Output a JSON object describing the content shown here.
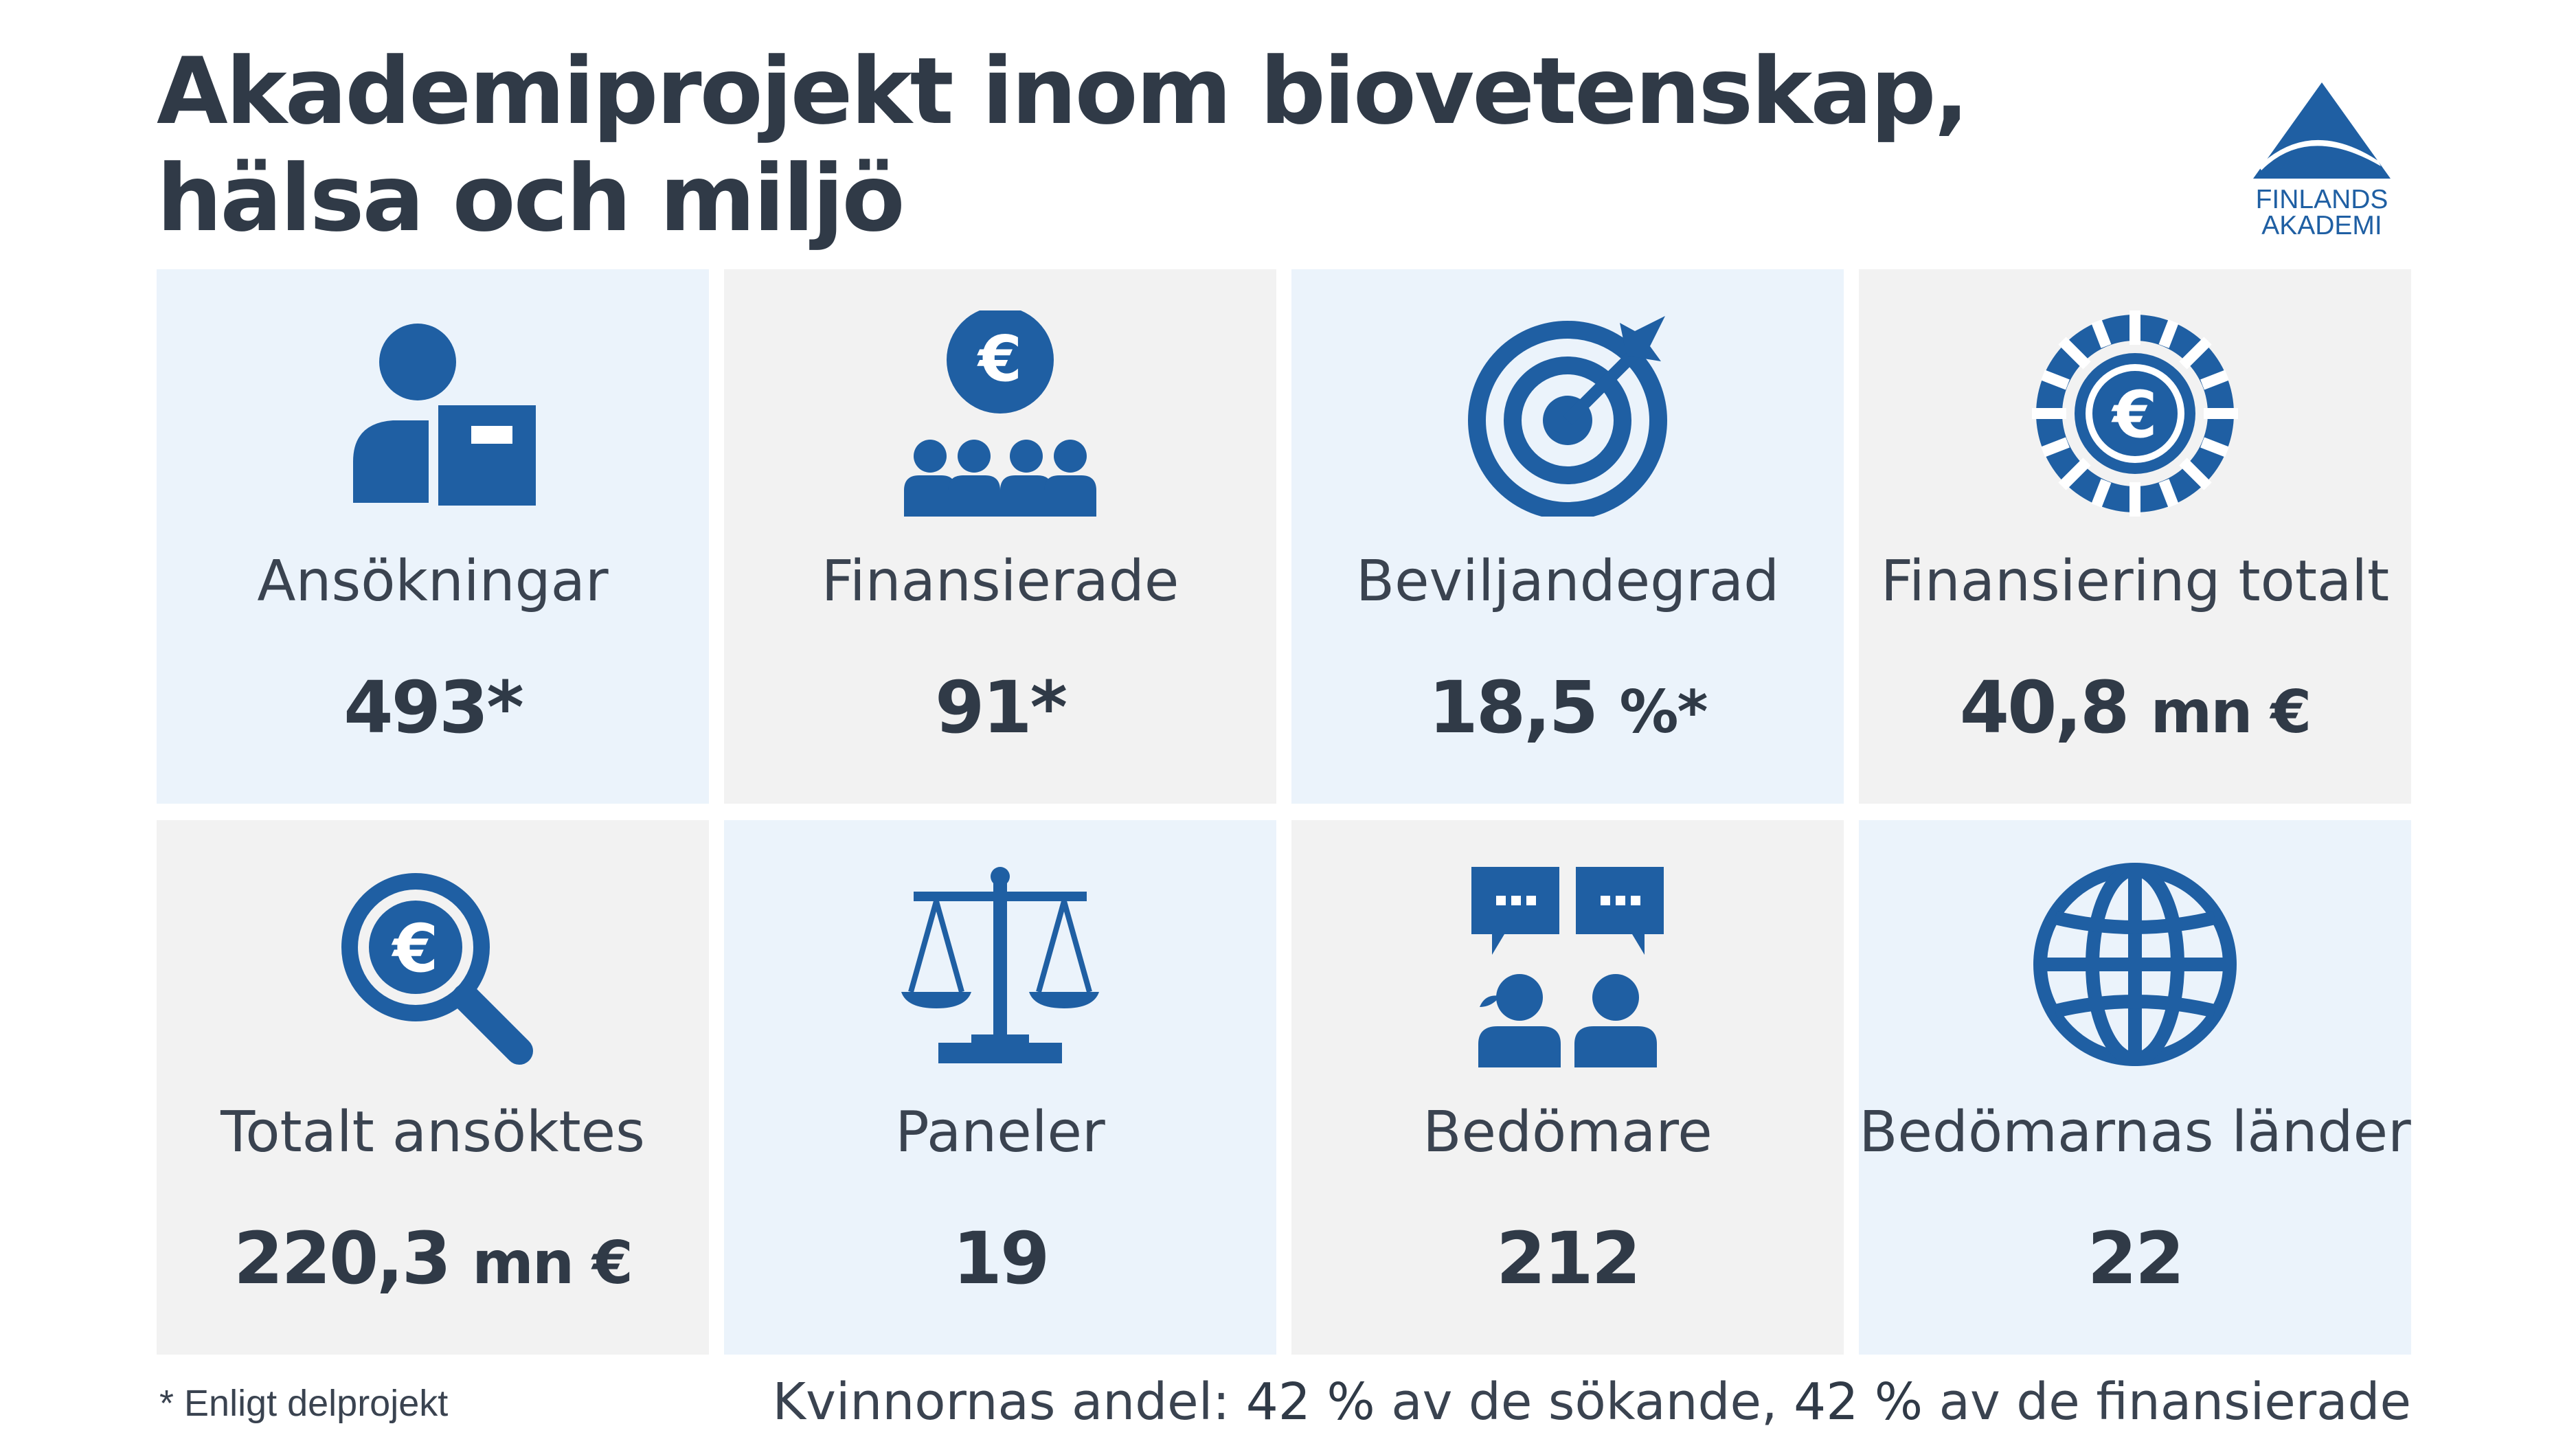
{
  "header": {
    "title_line1": "Akademiprojekt inom biovetenskap,",
    "title_line2": "hälsa och miljö"
  },
  "logo": {
    "line1": "FINLANDS",
    "line2": "AKADEMI",
    "color": "#1f5fa3"
  },
  "colors": {
    "icon": "#1f5fa3",
    "tile_blue": "#ebf3fb",
    "tile_gray": "#f2f2f2",
    "text": "#303a47"
  },
  "tiles": [
    {
      "icon": "person-with-document-icon",
      "label": "Ansökningar",
      "value": "493*",
      "unit": ""
    },
    {
      "icon": "euro-group-icon",
      "label": "Finansierade",
      "value": "91*",
      "unit": ""
    },
    {
      "icon": "target-icon",
      "label": "Beviljandegrad",
      "value": "18,5",
      "unit": "%*"
    },
    {
      "icon": "euro-coin-icon",
      "label": "Finansiering totalt",
      "value": "40,8",
      "unit": "mn €"
    },
    {
      "icon": "euro-magnifier-icon",
      "label": "Totalt ansöktes",
      "value": "220,3",
      "unit": "mn €"
    },
    {
      "icon": "scales-icon",
      "label": "Paneler",
      "value": "19",
      "unit": ""
    },
    {
      "icon": "reviewers-chat-icon",
      "label": "Bedömare",
      "value": "212",
      "unit": ""
    },
    {
      "icon": "globe-icon",
      "label": "Bedömarnas länder",
      "value": "22",
      "unit": ""
    }
  ],
  "footer": {
    "footnote": "* Enligt delprojekt",
    "women_prefix": "Kvinnornas andel: ",
    "women_applicants_pct": "42 %",
    "women_applicants_text": " av de sökande, ",
    "women_funded_pct": "42 %",
    "women_funded_text": " av de finansierade"
  }
}
